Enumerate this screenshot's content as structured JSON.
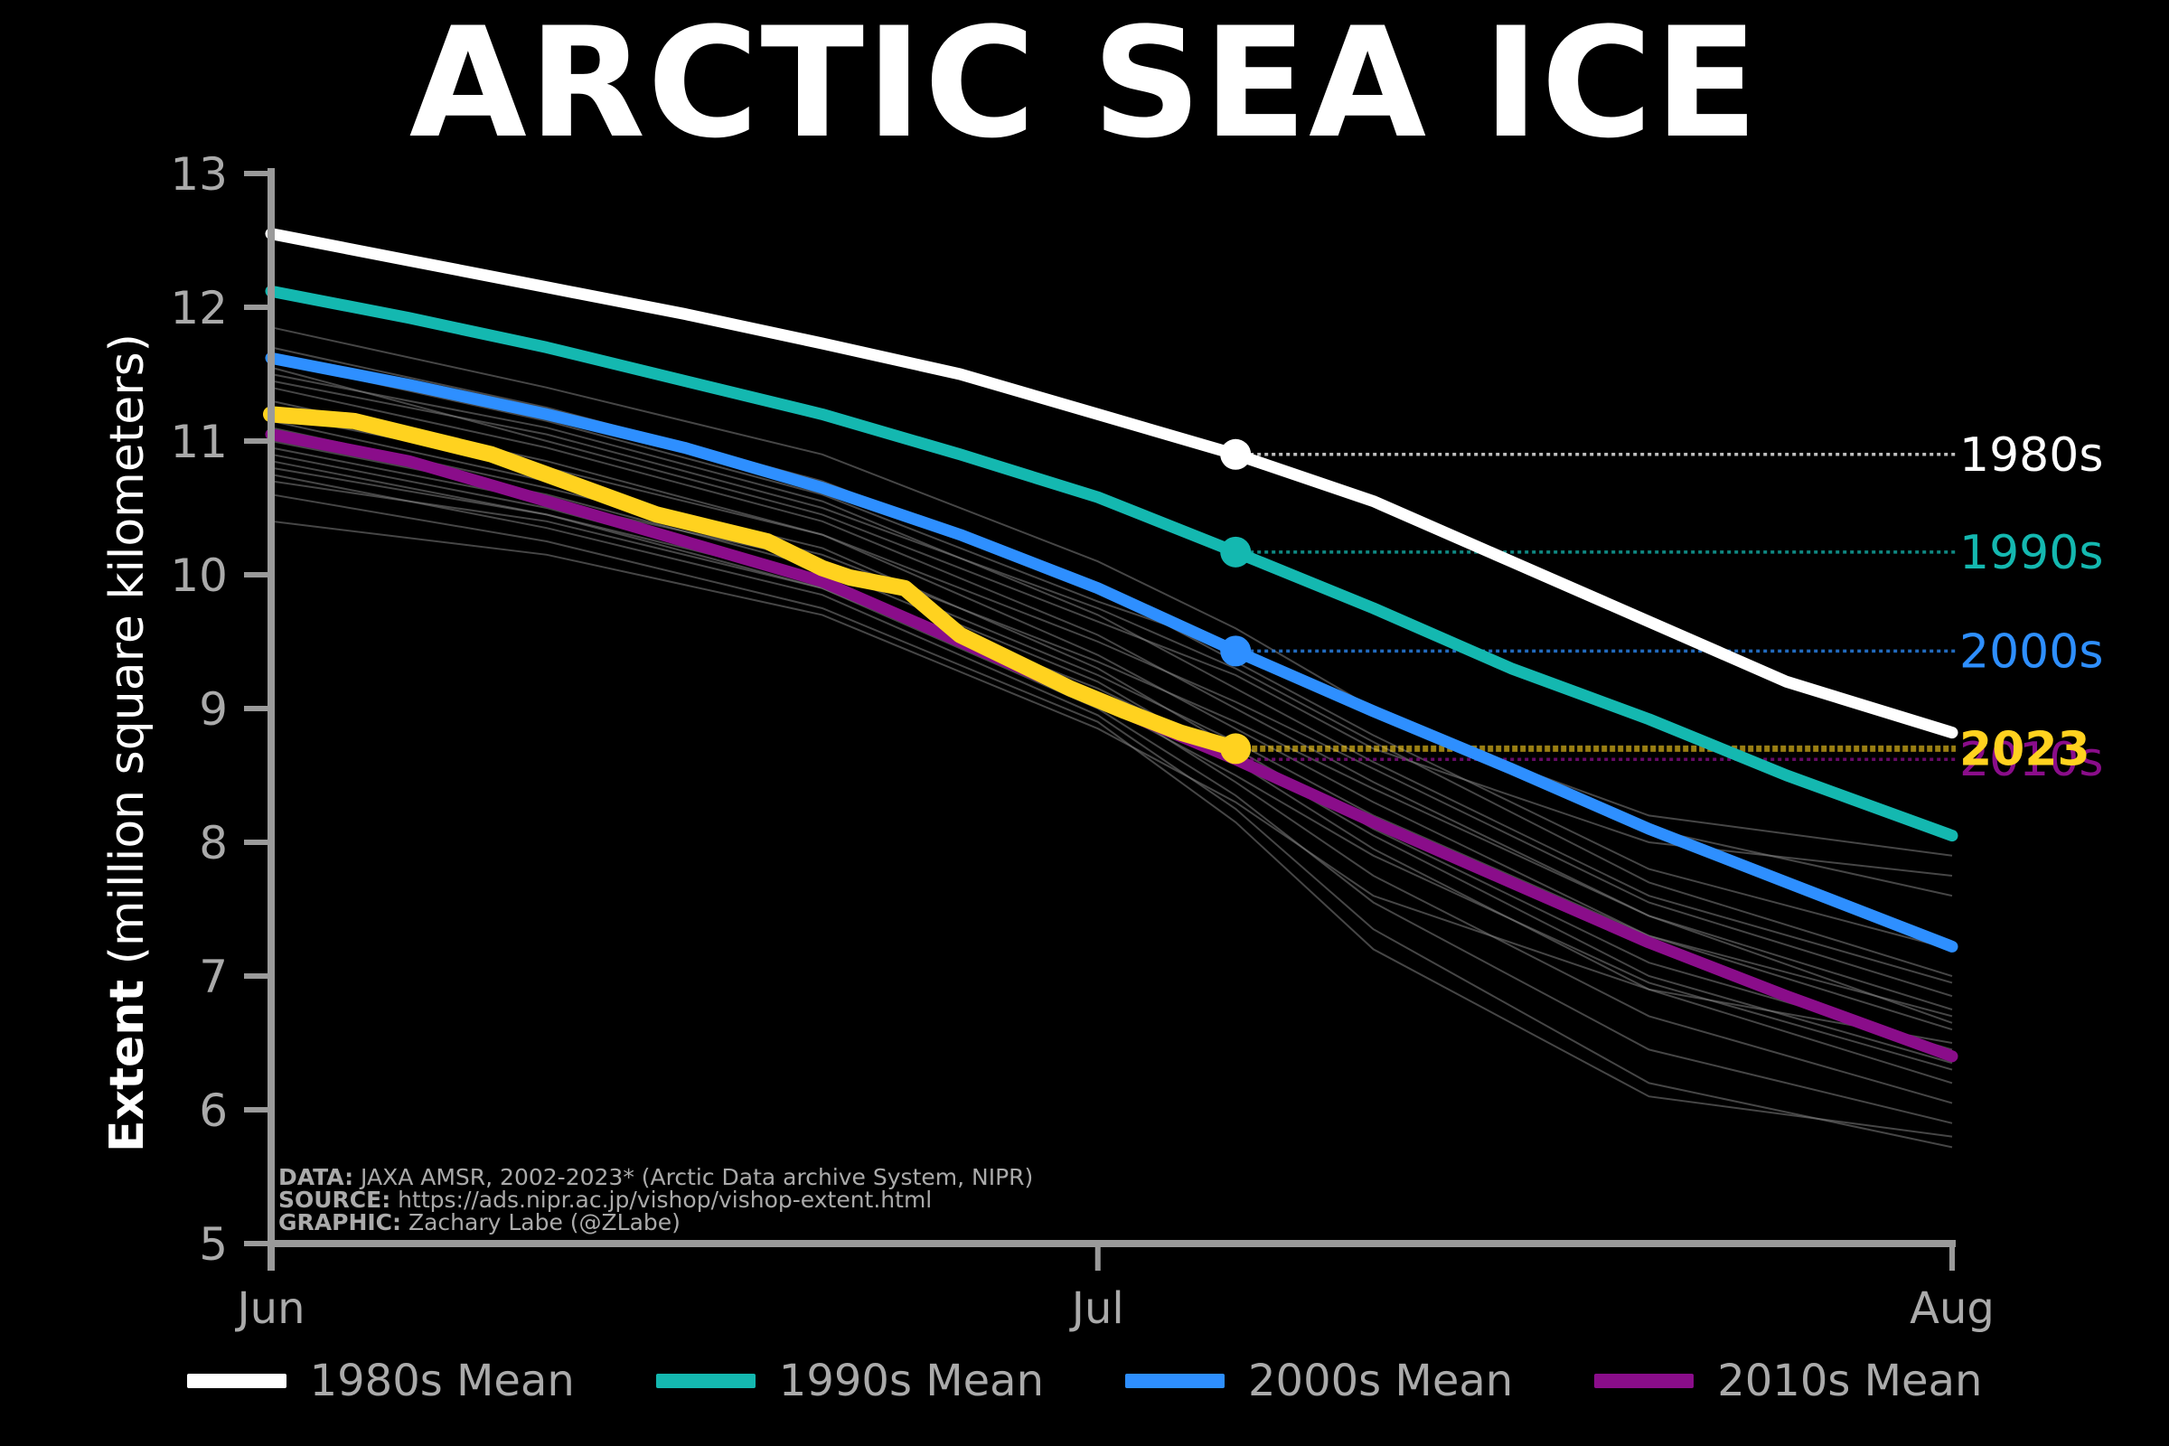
{
  "title": "ARCTIC SEA ICE",
  "chart_data": {
    "type": "line",
    "title": "ARCTIC SEA ICE",
    "ylabel_bold": "Extent",
    "ylabel_rest": " (million square kilometers)",
    "xlabel": "",
    "ylim": [
      5,
      13
    ],
    "yticks": [
      "5",
      "6",
      "7",
      "8",
      "9",
      "10",
      "11",
      "12",
      "13"
    ],
    "xlim": [
      0,
      61
    ],
    "xticks": [
      {
        "value": 0,
        "label": "Jun"
      },
      {
        "value": 30,
        "label": "Jul"
      },
      {
        "value": 61,
        "label": "Aug"
      }
    ],
    "marker_day": 35,
    "colors": {
      "1980s": "#ffffff",
      "1990s": "#14b8b0",
      "2000s": "#2e8fff",
      "2010s": "#8a0d8a",
      "2023": "#ffd21f",
      "years": "#808080"
    },
    "series": [
      {
        "name": "1980s Mean",
        "label": "1980s",
        "color": "#ffffff",
        "points": [
          [
            0,
            12.55
          ],
          [
            5,
            12.35
          ],
          [
            10,
            12.15
          ],
          [
            15,
            11.95
          ],
          [
            20,
            11.73
          ],
          [
            25,
            11.5
          ],
          [
            30,
            11.2
          ],
          [
            35,
            10.9
          ],
          [
            40,
            10.55
          ],
          [
            45,
            10.1
          ],
          [
            50,
            9.65
          ],
          [
            55,
            9.2
          ],
          [
            61,
            8.82
          ]
        ],
        "end_value": 10.9
      },
      {
        "name": "1990s Mean",
        "label": "1990s",
        "color": "#14b8b0",
        "points": [
          [
            0,
            12.12
          ],
          [
            5,
            11.92
          ],
          [
            10,
            11.7
          ],
          [
            15,
            11.45
          ],
          [
            20,
            11.2
          ],
          [
            25,
            10.9
          ],
          [
            30,
            10.58
          ],
          [
            35,
            10.17
          ],
          [
            40,
            9.75
          ],
          [
            45,
            9.3
          ],
          [
            50,
            8.92
          ],
          [
            55,
            8.5
          ],
          [
            61,
            8.05
          ]
        ],
        "end_value": 10.17
      },
      {
        "name": "2000s Mean",
        "label": "2000s",
        "color": "#2e8fff",
        "points": [
          [
            0,
            11.62
          ],
          [
            5,
            11.42
          ],
          [
            10,
            11.2
          ],
          [
            15,
            10.95
          ],
          [
            20,
            10.65
          ],
          [
            25,
            10.3
          ],
          [
            30,
            9.9
          ],
          [
            35,
            9.43
          ],
          [
            40,
            8.98
          ],
          [
            45,
            8.55
          ],
          [
            50,
            8.1
          ],
          [
            55,
            7.7
          ],
          [
            61,
            7.22
          ]
        ],
        "end_value": 9.43
      },
      {
        "name": "2010s Mean",
        "label": "2010s",
        "color": "#8a0d8a",
        "points": [
          [
            0,
            11.05
          ],
          [
            5,
            10.85
          ],
          [
            10,
            10.55
          ],
          [
            15,
            10.25
          ],
          [
            20,
            9.95
          ],
          [
            25,
            9.5
          ],
          [
            30,
            9.05
          ],
          [
            35,
            8.62
          ],
          [
            40,
            8.15
          ],
          [
            45,
            7.7
          ],
          [
            50,
            7.25
          ],
          [
            55,
            6.85
          ],
          [
            61,
            6.4
          ]
        ],
        "end_value": 8.62
      },
      {
        "name": "2023",
        "label": "2023",
        "color": "#ffd21f",
        "points": [
          [
            0,
            11.2
          ],
          [
            3,
            11.15
          ],
          [
            6,
            11.0
          ],
          [
            8,
            10.9
          ],
          [
            10,
            10.75
          ],
          [
            12,
            10.6
          ],
          [
            14,
            10.45
          ],
          [
            16,
            10.35
          ],
          [
            18,
            10.25
          ],
          [
            20,
            10.05
          ],
          [
            21,
            9.98
          ],
          [
            23,
            9.9
          ],
          [
            25,
            9.55
          ],
          [
            27,
            9.35
          ],
          [
            29,
            9.15
          ],
          [
            31,
            8.98
          ],
          [
            33,
            8.82
          ],
          [
            35,
            8.7
          ]
        ],
        "end_value": 8.7
      }
    ],
    "year_lines": [
      [
        [
          0,
          11.85
        ],
        [
          10,
          11.4
        ],
        [
          20,
          10.9
        ],
        [
          30,
          10.1
        ],
        [
          35,
          9.6
        ],
        [
          40,
          9.0
        ],
        [
          50,
          8.1
        ],
        [
          61,
          7.6
        ]
      ],
      [
        [
          0,
          11.7
        ],
        [
          10,
          11.25
        ],
        [
          20,
          10.7
        ],
        [
          30,
          9.9
        ],
        [
          35,
          9.35
        ],
        [
          40,
          8.8
        ],
        [
          50,
          7.8
        ],
        [
          61,
          7.2
        ]
      ],
      [
        [
          0,
          11.5
        ],
        [
          10,
          11.1
        ],
        [
          20,
          10.55
        ],
        [
          30,
          9.7
        ],
        [
          35,
          9.15
        ],
        [
          40,
          8.6
        ],
        [
          50,
          7.6
        ],
        [
          61,
          6.95
        ]
      ],
      [
        [
          0,
          11.4
        ],
        [
          10,
          10.95
        ],
        [
          20,
          10.4
        ],
        [
          30,
          9.55
        ],
        [
          35,
          9.0
        ],
        [
          40,
          8.45
        ],
        [
          50,
          7.45
        ],
        [
          61,
          6.75
        ]
      ],
      [
        [
          0,
          11.3
        ],
        [
          10,
          10.85
        ],
        [
          20,
          10.3
        ],
        [
          30,
          9.4
        ],
        [
          35,
          8.85
        ],
        [
          40,
          8.3
        ],
        [
          50,
          7.3
        ],
        [
          61,
          6.6
        ]
      ],
      [
        [
          0,
          11.15
        ],
        [
          10,
          10.7
        ],
        [
          20,
          10.2
        ],
        [
          30,
          9.3
        ],
        [
          35,
          8.7
        ],
        [
          40,
          8.1
        ],
        [
          50,
          7.1
        ],
        [
          61,
          6.45
        ]
      ],
      [
        [
          0,
          11.0
        ],
        [
          10,
          10.6
        ],
        [
          20,
          10.05
        ],
        [
          30,
          9.2
        ],
        [
          35,
          8.6
        ],
        [
          40,
          7.95
        ],
        [
          50,
          6.9
        ],
        [
          61,
          6.2
        ]
      ],
      [
        [
          0,
          10.9
        ],
        [
          10,
          10.5
        ],
        [
          20,
          9.95
        ],
        [
          30,
          9.1
        ],
        [
          35,
          8.45
        ],
        [
          40,
          7.75
        ],
        [
          50,
          6.7
        ],
        [
          61,
          6.05
        ]
      ],
      [
        [
          0,
          10.85
        ],
        [
          10,
          10.45
        ],
        [
          20,
          9.9
        ],
        [
          30,
          9.0
        ],
        [
          35,
          8.35
        ],
        [
          40,
          7.55
        ],
        [
          50,
          6.45
        ],
        [
          61,
          5.9
        ]
      ],
      [
        [
          0,
          10.75
        ],
        [
          10,
          10.35
        ],
        [
          20,
          9.85
        ],
        [
          30,
          8.95
        ],
        [
          35,
          8.25
        ],
        [
          40,
          7.35
        ],
        [
          50,
          6.2
        ],
        [
          61,
          5.72
        ]
      ],
      [
        [
          0,
          10.6
        ],
        [
          10,
          10.25
        ],
        [
          20,
          9.75
        ],
        [
          30,
          8.9
        ],
        [
          35,
          8.15
        ],
        [
          40,
          7.2
        ],
        [
          50,
          6.1
        ],
        [
          61,
          5.8
        ]
      ],
      [
        [
          0,
          10.4
        ],
        [
          10,
          10.15
        ],
        [
          20,
          9.7
        ],
        [
          30,
          8.85
        ],
        [
          35,
          8.3
        ],
        [
          40,
          7.6
        ],
        [
          50,
          6.9
        ],
        [
          61,
          6.5
        ]
      ],
      [
        [
          0,
          11.55
        ],
        [
          10,
          11.0
        ],
        [
          20,
          10.45
        ],
        [
          30,
          9.65
        ],
        [
          35,
          9.25
        ],
        [
          40,
          8.7
        ],
        [
          50,
          8.0
        ],
        [
          61,
          7.75
        ]
      ],
      [
        [
          0,
          11.2
        ],
        [
          10,
          10.8
        ],
        [
          20,
          10.3
        ],
        [
          30,
          9.5
        ],
        [
          35,
          9.05
        ],
        [
          40,
          8.55
        ],
        [
          50,
          7.55
        ],
        [
          61,
          6.85
        ]
      ],
      [
        [
          0,
          10.95
        ],
        [
          10,
          10.55
        ],
        [
          20,
          10.1
        ],
        [
          30,
          9.25
        ],
        [
          35,
          8.75
        ],
        [
          40,
          8.2
        ],
        [
          50,
          7.3
        ],
        [
          61,
          6.7
        ]
      ],
      [
        [
          0,
          11.45
        ],
        [
          10,
          11.05
        ],
        [
          20,
          10.5
        ],
        [
          30,
          9.75
        ],
        [
          35,
          9.3
        ],
        [
          40,
          8.75
        ],
        [
          50,
          7.7
        ],
        [
          61,
          7.0
        ]
      ],
      [
        [
          0,
          10.7
        ],
        [
          10,
          10.4
        ],
        [
          20,
          9.9
        ],
        [
          30,
          9.05
        ],
        [
          35,
          8.5
        ],
        [
          40,
          7.9
        ],
        [
          50,
          6.95
        ],
        [
          61,
          6.3
        ]
      ],
      [
        [
          0,
          11.1
        ],
        [
          10,
          10.65
        ],
        [
          20,
          10.15
        ],
        [
          30,
          9.35
        ],
        [
          35,
          8.9
        ],
        [
          40,
          8.4
        ],
        [
          50,
          7.45
        ],
        [
          61,
          6.65
        ]
      ],
      [
        [
          0,
          11.6
        ],
        [
          10,
          11.15
        ],
        [
          20,
          10.6
        ],
        [
          30,
          9.8
        ],
        [
          35,
          9.45
        ],
        [
          40,
          8.95
        ],
        [
          50,
          8.2
        ],
        [
          61,
          7.9
        ]
      ],
      [
        [
          0,
          10.8
        ],
        [
          10,
          10.45
        ],
        [
          20,
          9.95
        ],
        [
          30,
          9.15
        ],
        [
          35,
          8.65
        ],
        [
          40,
          8.05
        ],
        [
          50,
          7.0
        ],
        [
          61,
          6.35
        ]
      ]
    ]
  },
  "legend": [
    {
      "label": "1980s Mean",
      "color": "#ffffff"
    },
    {
      "label": "1990s Mean",
      "color": "#14b8b0"
    },
    {
      "label": "2000s Mean",
      "color": "#2e8fff"
    },
    {
      "label": "2010s Mean",
      "color": "#8a0d8a"
    }
  ],
  "credits": {
    "data_key": "DATA:",
    "data_val": " JAXA AMSR, 2002-2023* (Arctic Data archive System, NIPR)",
    "source_key": "SOURCE:",
    "source_val": " https://ads.nipr.ac.jp/vishop/vishop-extent.html",
    "graphic_key": "GRAPHIC:",
    "graphic_val": " Zachary Labe (@ZLabe)"
  }
}
